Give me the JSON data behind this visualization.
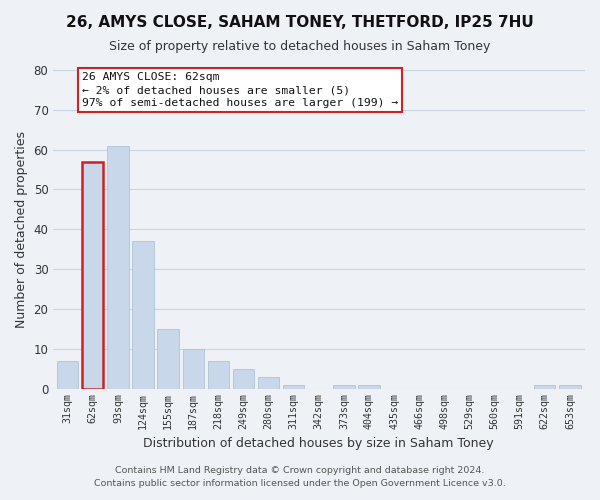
{
  "title": "26, AMYS CLOSE, SAHAM TONEY, THETFORD, IP25 7HU",
  "subtitle": "Size of property relative to detached houses in Saham Toney",
  "xlabel": "Distribution of detached houses by size in Saham Toney",
  "ylabel": "Number of detached properties",
  "bar_color": "#c8d8ea",
  "highlight_edge_color": "#cc2222",
  "bar_edge_color": "#a8becc",
  "categories": [
    "31sqm",
    "62sqm",
    "93sqm",
    "124sqm",
    "155sqm",
    "187sqm",
    "218sqm",
    "249sqm",
    "280sqm",
    "311sqm",
    "342sqm",
    "373sqm",
    "404sqm",
    "435sqm",
    "466sqm",
    "498sqm",
    "529sqm",
    "560sqm",
    "591sqm",
    "622sqm",
    "653sqm"
  ],
  "values": [
    7,
    57,
    61,
    37,
    15,
    10,
    7,
    5,
    3,
    1,
    0,
    1,
    1,
    0,
    0,
    0,
    0,
    0,
    0,
    1,
    1
  ],
  "highlight_index": 1,
  "ylim": [
    0,
    80
  ],
  "yticks": [
    0,
    10,
    20,
    30,
    40,
    50,
    60,
    70,
    80
  ],
  "annotation_title": "26 AMYS CLOSE: 62sqm",
  "annotation_line1": "← 2% of detached houses are smaller (5)",
  "annotation_line2": "97% of semi-detached houses are larger (199) →",
  "footer1": "Contains HM Land Registry data © Crown copyright and database right 2024.",
  "footer2": "Contains public sector information licensed under the Open Government Licence v3.0.",
  "background_color": "#eef2f7",
  "plot_bg_color": "#eef2f7",
  "annotation_box_color": "#ffffff",
  "annotation_box_edge": "#cc2222",
  "grid_color": "#c8d4e0"
}
